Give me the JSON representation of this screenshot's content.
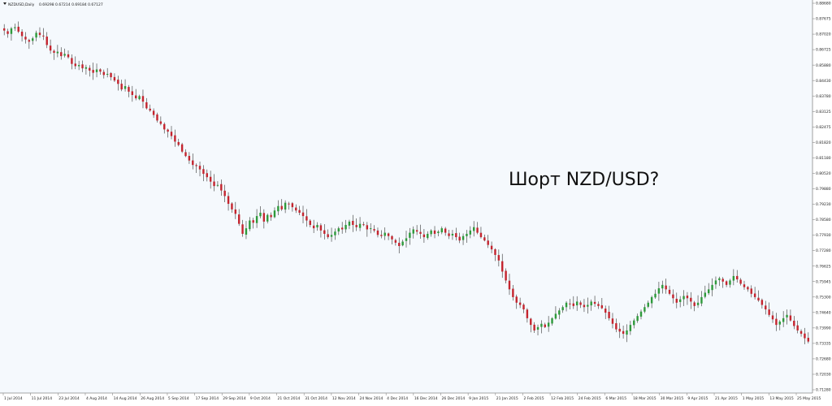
{
  "header": {
    "symbol_timeframe": "NZDUSD,Daily",
    "ohlc": "0.69298 0.67214 0.69184 0.67127"
  },
  "colors": {
    "background": "#f5f9fd",
    "bull": "#2e9a3b",
    "bear": "#c4242e",
    "wick": "#333333",
    "axis": "#888888"
  },
  "chart_data": {
    "type": "candlestick",
    "title": "",
    "annotation": "Шорт NZD/USD?",
    "ylim": [
      0.7128,
      0.8868
    ],
    "y_ticks": [
      "0.88680",
      "0.87675",
      "0.87020",
      "0.86725",
      "0.85880",
      "0.84430",
      "0.83780",
      "0.83125",
      "0.82475",
      "0.81820",
      "0.81180",
      "0.80520",
      "0.79880",
      "0.79230",
      "0.78580",
      "0.77930",
      "0.77280",
      "0.76625",
      "0.75945",
      "0.75300",
      "0.74640",
      "0.73990",
      "0.73335",
      "0.72680",
      "0.72030",
      "0.71280"
    ],
    "x_ticks": [
      "1 Jul 2014",
      "11 Jul 2014",
      "23 Jul 2014",
      "4 Aug 2014",
      "14 Aug 2014",
      "26 Aug 2014",
      "5 Sep 2014",
      "17 Sep 2014",
      "29 Sep 2014",
      "9 Oct 2014",
      "21 Oct 2014",
      "31 Oct 2014",
      "12 Nov 2014",
      "24 Nov 2014",
      "4 Dec 2014",
      "16 Dec 2014",
      "26 Dec 2014",
      "9 Jan 2015",
      "21 Jan 2015",
      "2 Feb 2015",
      "12 Feb 2015",
      "24 Feb 2015",
      "6 Mar 2015",
      "18 Mar 2015",
      "30 Mar 2015",
      "9 Apr 2015",
      "21 Apr 2015",
      "1 May 2015",
      "13 May 2015",
      "25 May 2015"
    ],
    "close_path": [
      0.8745,
      0.873,
      0.8755,
      0.876,
      0.874,
      0.872,
      0.8705,
      0.8695,
      0.871,
      0.8735,
      0.8725,
      0.872,
      0.868,
      0.8655,
      0.8645,
      0.865,
      0.863,
      0.864,
      0.8625,
      0.8595,
      0.8585,
      0.859,
      0.8575,
      0.858,
      0.8565,
      0.8555,
      0.857,
      0.856,
      0.8545,
      0.855,
      0.8535,
      0.852,
      0.8505,
      0.848,
      0.8495,
      0.847,
      0.8455,
      0.844,
      0.845,
      0.8425,
      0.8395,
      0.8385,
      0.8365,
      0.834,
      0.8325,
      0.83,
      0.829,
      0.827,
      0.8245,
      0.823,
      0.82,
      0.818,
      0.816,
      0.814,
      0.8135,
      0.812,
      0.81,
      0.8085,
      0.8065,
      0.8045,
      0.805,
      0.8025,
      0.8,
      0.7965,
      0.794,
      0.792,
      0.7875,
      0.783,
      0.7855,
      0.789,
      0.788,
      0.791,
      0.7925,
      0.7885,
      0.7915,
      0.7905,
      0.7935,
      0.7955,
      0.794,
      0.797,
      0.7965,
      0.795,
      0.7935,
      0.7925,
      0.791,
      0.789,
      0.787,
      0.7855,
      0.787,
      0.7845,
      0.783,
      0.7815,
      0.7825,
      0.784,
      0.7855,
      0.785,
      0.787,
      0.7885,
      0.787,
      0.786,
      0.7875,
      0.787,
      0.785,
      0.7855,
      0.7845,
      0.7825,
      0.782,
      0.7835,
      0.782,
      0.7805,
      0.779,
      0.7775,
      0.7795,
      0.781,
      0.7835,
      0.785,
      0.784,
      0.783,
      0.7815,
      0.783,
      0.7845,
      0.783,
      0.784,
      0.7855,
      0.7835,
      0.782,
      0.783,
      0.7815,
      0.78,
      0.782,
      0.783,
      0.7845,
      0.786,
      0.7835,
      0.7815,
      0.78,
      0.778,
      0.776,
      0.7735,
      0.771,
      0.766,
      0.762,
      0.758,
      0.7545,
      0.752,
      0.751,
      0.749,
      0.745,
      0.742,
      0.7395,
      0.741,
      0.7425,
      0.741,
      0.743,
      0.745,
      0.747,
      0.7485,
      0.75,
      0.752,
      0.7515,
      0.7505,
      0.7525,
      0.751,
      0.75,
      0.751,
      0.7525,
      0.7515,
      0.7505,
      0.7495,
      0.7475,
      0.745,
      0.7425,
      0.74,
      0.739,
      0.738,
      0.7395,
      0.742,
      0.744,
      0.746,
      0.748,
      0.75,
      0.752,
      0.7545,
      0.756,
      0.7585,
      0.76,
      0.758,
      0.756,
      0.754,
      0.752,
      0.7535,
      0.755,
      0.754,
      0.7525,
      0.7505,
      0.752,
      0.7545,
      0.7565,
      0.758,
      0.76,
      0.762,
      0.763,
      0.7615,
      0.76,
      0.762,
      0.764,
      0.7625,
      0.7605,
      0.759,
      0.758,
      0.756,
      0.7545,
      0.753,
      0.751,
      0.749,
      0.7465,
      0.7445,
      0.742,
      0.7435,
      0.745,
      0.7465,
      0.744,
      0.7415,
      0.7395,
      0.738,
      0.736,
      0.7345
    ]
  }
}
